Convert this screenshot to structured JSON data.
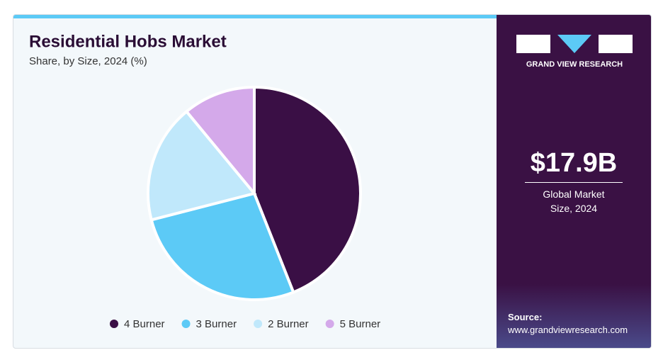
{
  "chart_data": {
    "type": "pie",
    "title": "Residential Hobs Market",
    "subtitle": "Share, by Size, 2024 (%)",
    "categories": [
      "4 Burner",
      "3 Burner",
      "2 Burner",
      "5 Burner"
    ],
    "values": [
      44,
      27,
      18,
      11
    ],
    "colors": [
      "#3a0f45",
      "#5ccaf6",
      "#c0e8fb",
      "#d4a9ea"
    ],
    "legend": "bottom"
  },
  "panel": {
    "brand": "GRAND VIEW RESEARCH",
    "market_size": "$17.9B",
    "market_label": "Global Market Size, 2024",
    "source_label": "Source:",
    "source": "www.grandviewresearch.com"
  }
}
